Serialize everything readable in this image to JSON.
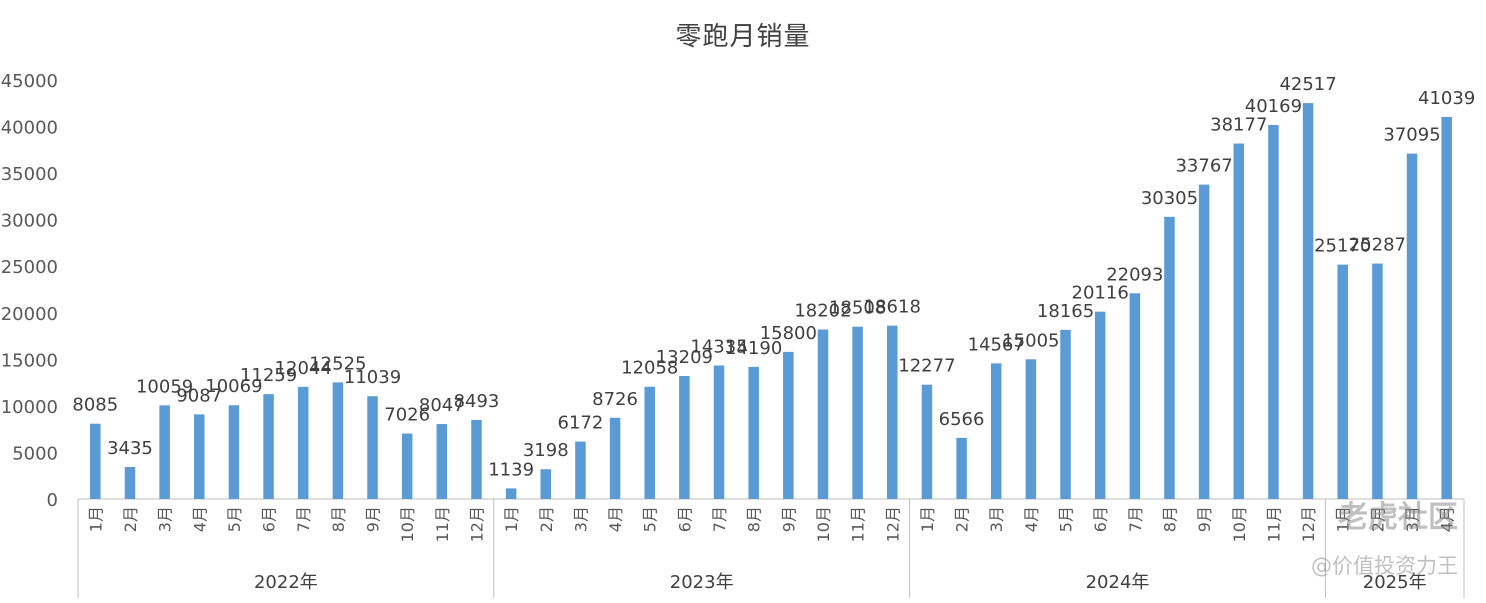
{
  "title": "零跑月销量",
  "watermark": {
    "main": "老虎社区",
    "sub": "@价值投资力王"
  },
  "chart_data": {
    "type": "bar",
    "title": "零跑月销量",
    "xlabel": "",
    "ylabel": "",
    "ylim": [
      0,
      45000
    ],
    "yticks": [
      "0",
      "5000",
      "10000",
      "15000",
      "20000",
      "25000",
      "30000",
      "35000",
      "40000",
      "45000"
    ],
    "grid": false,
    "legend": "none",
    "color": "#5B9BD5",
    "groups": [
      {
        "label": "2022年",
        "categories": [
          "1月",
          "2月",
          "3月",
          "4月",
          "5月",
          "6月",
          "7月",
          "8月",
          "9月",
          "10月",
          "11月",
          "12月"
        ],
        "values": [
          8085,
          3435,
          10059,
          9087,
          10069,
          11259,
          12044,
          12525,
          11039,
          7026,
          8047,
          8493
        ]
      },
      {
        "label": "2023年",
        "categories": [
          "1月",
          "2月",
          "3月",
          "4月",
          "5月",
          "6月",
          "7月",
          "8月",
          "9月",
          "10月",
          "11月",
          "12月"
        ],
        "values": [
          1139,
          3198,
          6172,
          8726,
          12058,
          13209,
          14335,
          14190,
          15800,
          18202,
          18508,
          18618
        ]
      },
      {
        "label": "2024年",
        "categories": [
          "1月",
          "2月",
          "3月",
          "4月",
          "5月",
          "6月",
          "7月",
          "8月",
          "9月",
          "10月",
          "11月",
          "12月"
        ],
        "values": [
          12277,
          6566,
          14567,
          15005,
          18165,
          20116,
          22093,
          30305,
          33767,
          38177,
          40169,
          42517
        ]
      },
      {
        "label": "2025年",
        "categories": [
          "1月",
          "2月",
          "3月",
          "4月"
        ],
        "values": [
          25170,
          25287,
          37095,
          41039
        ]
      }
    ]
  }
}
